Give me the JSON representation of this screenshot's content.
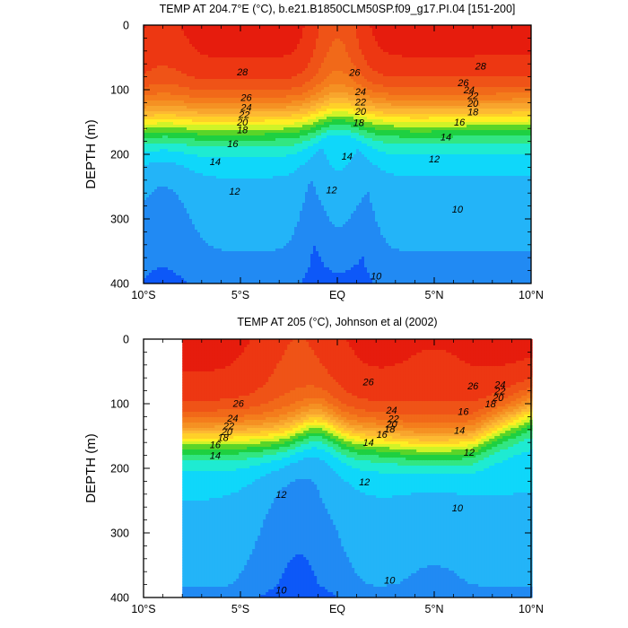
{
  "chart_data": [
    {
      "type": "heatmap",
      "subtype": "filled-contour",
      "title": "TEMP AT 204.7°E (°C), b.e21.B1850CLM50SP.f09_g17.PI.04 [151-200]",
      "ylabel": "DEPTH (m)",
      "xlabel": "",
      "xlim": [
        -10,
        10
      ],
      "ylim": [
        400,
        0
      ],
      "x_ticks": [
        {
          "value": -10,
          "label": "10°S"
        },
        {
          "value": -5,
          "label": "5°S"
        },
        {
          "value": 0,
          "label": "EQ"
        },
        {
          "value": 5,
          "label": "5°N"
        },
        {
          "value": 10,
          "label": "10°N"
        }
      ],
      "y_ticks": [
        0,
        100,
        200,
        300,
        400
      ],
      "data_x_start": -10,
      "levels": [
        10,
        11,
        12,
        13,
        14,
        15,
        16,
        17,
        18,
        19,
        20,
        21,
        22,
        23,
        24,
        25,
        26,
        27,
        28,
        29
      ],
      "contour_labels": [
        {
          "x": -4.9,
          "depth": 72,
          "label": "28"
        },
        {
          "x": 0.9,
          "depth": 73,
          "label": "26"
        },
        {
          "x": 7.4,
          "depth": 63,
          "label": "28"
        },
        {
          "x": 6.5,
          "depth": 89,
          "label": "26"
        },
        {
          "x": 6.8,
          "depth": 100,
          "label": "24"
        },
        {
          "x": 7.0,
          "depth": 109,
          "label": "22"
        },
        {
          "x": 7.0,
          "depth": 121,
          "label": "20"
        },
        {
          "x": 7.0,
          "depth": 134,
          "label": "18"
        },
        {
          "x": 6.3,
          "depth": 150,
          "label": "16"
        },
        {
          "x": 1.2,
          "depth": 103,
          "label": "24"
        },
        {
          "x": 1.2,
          "depth": 119,
          "label": "22"
        },
        {
          "x": 1.2,
          "depth": 133,
          "label": "20"
        },
        {
          "x": 1.1,
          "depth": 151,
          "label": "18"
        },
        {
          "x": -4.7,
          "depth": 112,
          "label": "26"
        },
        {
          "x": -4.7,
          "depth": 127,
          "label": "24"
        },
        {
          "x": -4.8,
          "depth": 138,
          "label": "22"
        },
        {
          "x": -4.9,
          "depth": 150,
          "label": "20"
        },
        {
          "x": -4.9,
          "depth": 162,
          "label": "18"
        },
        {
          "x": -5.4,
          "depth": 183,
          "label": "16"
        },
        {
          "x": -6.3,
          "depth": 211,
          "label": "14"
        },
        {
          "x": -5.3,
          "depth": 257,
          "label": "12"
        },
        {
          "x": 5.6,
          "depth": 173,
          "label": "14"
        },
        {
          "x": 0.5,
          "depth": 203,
          "label": "14"
        },
        {
          "x": 5.0,
          "depth": 207,
          "label": "12"
        },
        {
          "x": -0.3,
          "depth": 255,
          "label": "12"
        },
        {
          "x": 6.2,
          "depth": 285,
          "label": "10"
        },
        {
          "x": 2.0,
          "depth": 388,
          "label": "10"
        }
      ]
    },
    {
      "type": "heatmap",
      "subtype": "filled-contour",
      "title": "TEMP AT 205 (°C), Johnson et al (2002)",
      "ylabel": "DEPTH (m)",
      "xlabel": "",
      "xlim": [
        -10,
        10
      ],
      "ylim": [
        400,
        0
      ],
      "x_ticks": [
        {
          "value": -10,
          "label": "10°S"
        },
        {
          "value": -5,
          "label": "5°S"
        },
        {
          "value": 0,
          "label": "EQ"
        },
        {
          "value": 5,
          "label": "5°N"
        },
        {
          "value": 10,
          "label": "10°N"
        }
      ],
      "y_ticks": [
        0,
        100,
        200,
        300,
        400
      ],
      "data_x_start": -8,
      "levels": [
        10,
        11,
        12,
        13,
        14,
        15,
        16,
        17,
        18,
        19,
        20,
        21,
        22,
        23,
        24,
        25,
        26,
        27,
        28,
        29
      ],
      "contour_labels": [
        {
          "x": -5.1,
          "depth": 99,
          "label": "26"
        },
        {
          "x": 1.6,
          "depth": 66,
          "label": "26"
        },
        {
          "x": 7.0,
          "depth": 72,
          "label": "26"
        },
        {
          "x": 8.4,
          "depth": 70,
          "label": "24"
        },
        {
          "x": 8.4,
          "depth": 80,
          "label": "22"
        },
        {
          "x": 8.3,
          "depth": 90,
          "label": "20"
        },
        {
          "x": 7.9,
          "depth": 100,
          "label": "18"
        },
        {
          "x": 6.5,
          "depth": 112,
          "label": "16"
        },
        {
          "x": -5.4,
          "depth": 122,
          "label": "24"
        },
        {
          "x": -5.6,
          "depth": 134,
          "label": "22"
        },
        {
          "x": -5.7,
          "depth": 143,
          "label": "20"
        },
        {
          "x": -5.9,
          "depth": 152,
          "label": "18"
        },
        {
          "x": -6.3,
          "depth": 163,
          "label": "16"
        },
        {
          "x": -6.3,
          "depth": 180,
          "label": "14"
        },
        {
          "x": 2.8,
          "depth": 110,
          "label": "24"
        },
        {
          "x": 2.9,
          "depth": 123,
          "label": "22"
        },
        {
          "x": 2.8,
          "depth": 131,
          "label": "20"
        },
        {
          "x": 2.7,
          "depth": 139,
          "label": "18"
        },
        {
          "x": 2.3,
          "depth": 147,
          "label": "16"
        },
        {
          "x": 1.6,
          "depth": 160,
          "label": "14"
        },
        {
          "x": 6.3,
          "depth": 141,
          "label": "14"
        },
        {
          "x": 6.8,
          "depth": 175,
          "label": "12"
        },
        {
          "x": 1.4,
          "depth": 221,
          "label": "12"
        },
        {
          "x": -2.9,
          "depth": 240,
          "label": "12"
        },
        {
          "x": 6.2,
          "depth": 261,
          "label": "10"
        },
        {
          "x": 2.7,
          "depth": 373,
          "label": "10"
        },
        {
          "x": -2.9,
          "depth": 388,
          "label": "10"
        }
      ]
    }
  ]
}
